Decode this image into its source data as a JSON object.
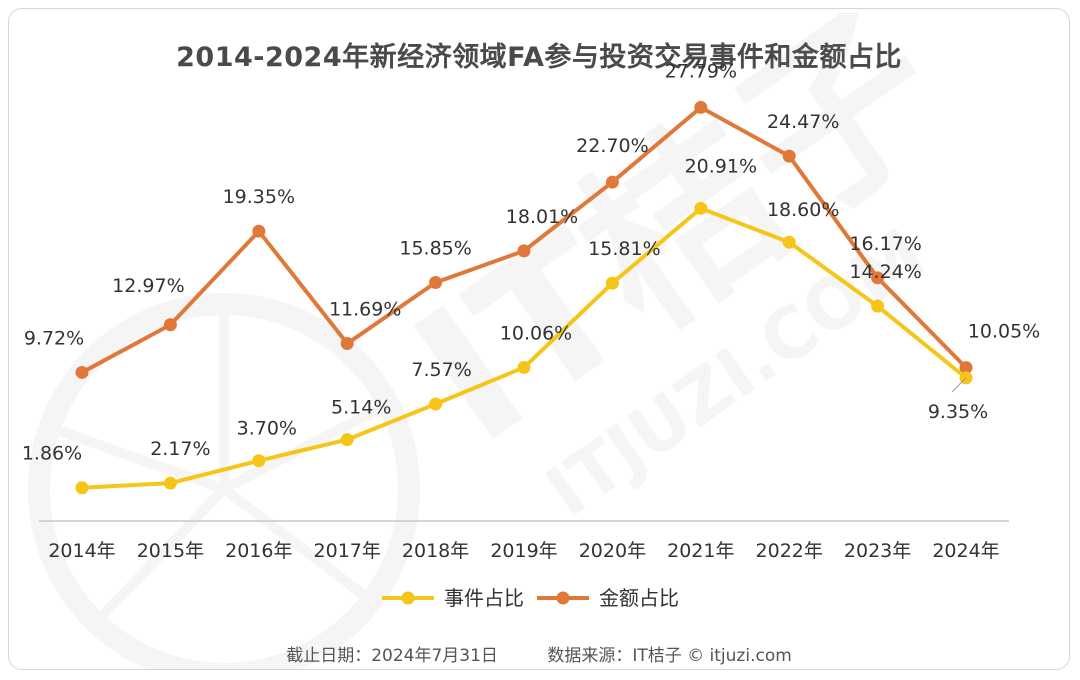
{
  "title": "2014-2024年新经济领域FA参与投资交易事件和金额占比",
  "footer": {
    "date": "截止日期：2024年7月31日",
    "source": "数据来源：IT桔子 © itjuzi.com"
  },
  "watermark": {
    "brand": "IT桔子",
    "domain": "ITJUZI.COM"
  },
  "colors": {
    "events": "#F5C518",
    "amount": "#E0783A"
  },
  "chart_data": {
    "type": "line",
    "categories": [
      "2014年",
      "2015年",
      "2016年",
      "2017年",
      "2018年",
      "2019年",
      "2020年",
      "2021年",
      "2022年",
      "2023年",
      "2024年"
    ],
    "series": [
      {
        "name": "事件占比",
        "values": [
          1.86,
          2.17,
          3.7,
          5.14,
          7.57,
          10.06,
          15.81,
          20.91,
          18.6,
          14.24,
          9.35
        ],
        "labels": [
          "1.86%",
          "2.17%",
          "3.70%",
          "5.14%",
          "7.57%",
          "10.06%",
          "15.81%",
          "20.91%",
          "18.60%",
          "14.24%",
          "9.35%"
        ]
      },
      {
        "name": "金额占比",
        "values": [
          9.72,
          12.97,
          19.35,
          11.69,
          15.85,
          18.01,
          22.7,
          27.79,
          24.47,
          16.17,
          10.05
        ],
        "labels": [
          "9.72%",
          "12.97%",
          "19.35%",
          "11.69%",
          "15.85%",
          "18.01%",
          "22.70%",
          "27.79%",
          "24.47%",
          "16.17%",
          "10.05%"
        ]
      }
    ],
    "ylim": [
      0,
      30
    ],
    "grid": false,
    "legend": "bottom-center"
  }
}
